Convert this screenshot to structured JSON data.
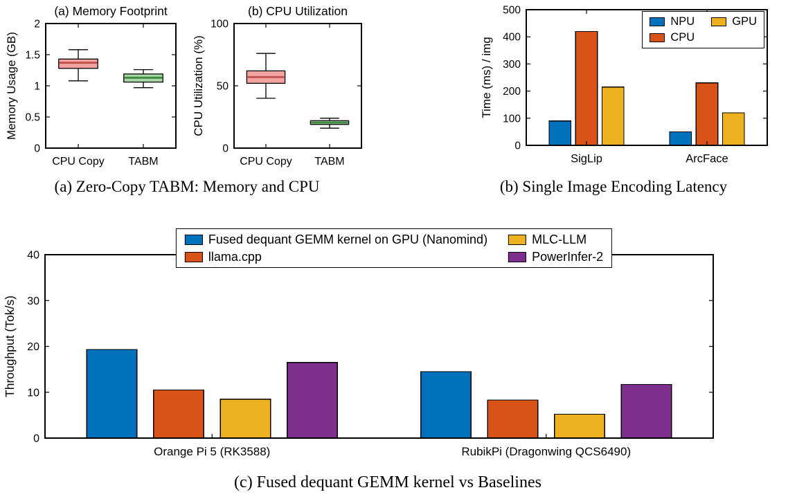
{
  "captions": {
    "a": "(a) Zero-Copy TABM: Memory and CPU",
    "b": "(b) Single Image Encoding Latency",
    "c": "(c) Fused dequant GEMM kernel vs Baselines"
  },
  "colors": {
    "matlab_blue": "#0072BD",
    "matlab_orange": "#D95319",
    "matlab_yellow": "#EDB120",
    "matlab_purple": "#7E2F8E",
    "box_pink": "#F2A3A0",
    "box_green": "#A8D8A6"
  },
  "chart_data": [
    {
      "id": "memory-footprint",
      "type": "boxplot",
      "title": "(a) Memory Footprint",
      "ylabel": "Memory Usage (GB)",
      "ylim": [
        0,
        2
      ],
      "yticks": [
        0,
        0.5,
        1,
        1.5,
        2
      ],
      "categories": [
        "CPU Copy",
        "TABM"
      ],
      "grid": false,
      "boxes": [
        {
          "whisker_low": 1.08,
          "q1": 1.28,
          "median": 1.37,
          "q3": 1.43,
          "whisker_high": 1.58,
          "fill": "#F2A3A0",
          "median_color": "#C0504D"
        },
        {
          "whisker_low": 0.97,
          "q1": 1.06,
          "median": 1.13,
          "q3": 1.19,
          "whisker_high": 1.26,
          "fill": "#A8D8A6",
          "median_color": "#3C8C40"
        }
      ]
    },
    {
      "id": "cpu-utilization",
      "type": "boxplot",
      "title": "(b) CPU Utilization",
      "ylabel": "CPU Utilization (%)",
      "ylim": [
        0,
        100
      ],
      "yticks": [
        0,
        50,
        100
      ],
      "categories": [
        "CPU Copy",
        "TABM"
      ],
      "grid": false,
      "boxes": [
        {
          "whisker_low": 40,
          "q1": 52,
          "median": 57,
          "q3": 62,
          "whisker_high": 76,
          "fill": "#F2A3A0",
          "median_color": "#C0504D"
        },
        {
          "whisker_low": 16,
          "q1": 19,
          "median": 20.5,
          "q3": 22,
          "whisker_high": 24,
          "fill": "#A8D8A6",
          "median_color": "#3C8C40"
        }
      ]
    },
    {
      "id": "encoding-latency",
      "type": "bar",
      "title": "",
      "ylabel": "Time (ms) / img",
      "ylim": [
        0,
        500
      ],
      "yticks": [
        0,
        100,
        200,
        300,
        400,
        500
      ],
      "categories": [
        "SigLip",
        "ArcFace"
      ],
      "grid": false,
      "legend_position": "top-right-inside",
      "legend_rows": 2,
      "series": [
        {
          "name": "NPU",
          "color": "#0072BD",
          "values": [
            90,
            50
          ]
        },
        {
          "name": "CPU",
          "color": "#D95319",
          "values": [
            420,
            230
          ]
        },
        {
          "name": "GPU",
          "color": "#EDB120",
          "values": [
            215,
            120
          ]
        }
      ]
    },
    {
      "id": "gemm-throughput",
      "type": "bar",
      "title": "",
      "ylabel": "Throughput (Tok/s)",
      "ylim": [
        0,
        40
      ],
      "yticks": [
        0,
        10,
        20,
        30,
        40
      ],
      "categories": [
        "Orange Pi 5 (RK3588)",
        "RubikPi (Dragonwing QCS6490)"
      ],
      "grid": false,
      "legend_position": "top-center-overlap",
      "legend_rows": 2,
      "series": [
        {
          "name": "Fused dequant GEMM kernel on GPU (Nanomind)",
          "color": "#0072BD",
          "values": [
            19.3,
            14.5
          ]
        },
        {
          "name": "llama.cpp",
          "color": "#D95319",
          "values": [
            10.5,
            8.3
          ]
        },
        {
          "name": "MLC-LLM",
          "color": "#EDB120",
          "values": [
            8.5,
            5.2
          ]
        },
        {
          "name": "PowerInfer-2",
          "color": "#7E2F8E",
          "values": [
            16.5,
            11.7
          ]
        }
      ]
    }
  ]
}
